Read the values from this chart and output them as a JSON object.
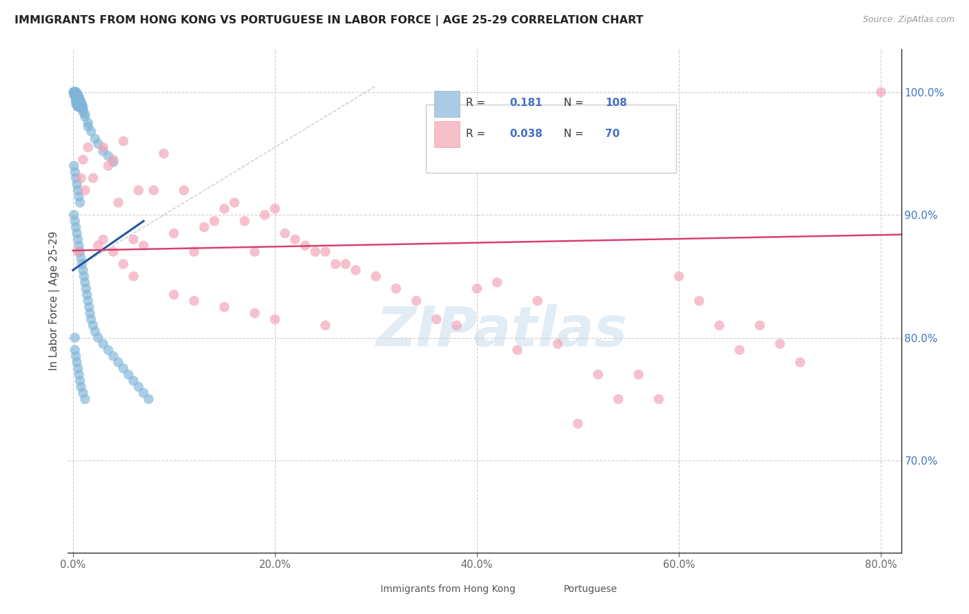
{
  "title": "IMMIGRANTS FROM HONG KONG VS PORTUGUESE IN LABOR FORCE | AGE 25-29 CORRELATION CHART",
  "source": "Source: ZipAtlas.com",
  "ylabel": "In Labor Force | Age 25-29",
  "x_tick_labels": [
    "0.0%",
    "20.0%",
    "40.0%",
    "60.0%",
    "80.0%"
  ],
  "x_tick_vals": [
    0.0,
    0.2,
    0.4,
    0.6,
    0.8
  ],
  "y_tick_labels_right": [
    "100.0%",
    "90.0%",
    "80.0%",
    "70.0%"
  ],
  "y_tick_vals": [
    1.0,
    0.9,
    0.8,
    0.7
  ],
  "xlim": [
    -0.005,
    0.82
  ],
  "ylim": [
    0.625,
    1.035
  ],
  "hk_R": 0.181,
  "hk_N": 108,
  "pt_R": 0.038,
  "pt_N": 70,
  "hk_color": "#7FB5D8",
  "pt_color": "#F2A0B4",
  "hk_line_color": "#2255A0",
  "pt_line_color": "#D84070",
  "legend_box_color_hk": "#A8CCE8",
  "legend_box_color_pt": "#F7BFCA",
  "hk_scatter_x": [
    0.001,
    0.001,
    0.001,
    0.001,
    0.001,
    0.002,
    0.002,
    0.002,
    0.002,
    0.002,
    0.002,
    0.002,
    0.003,
    0.003,
    0.003,
    0.003,
    0.003,
    0.003,
    0.003,
    0.003,
    0.004,
    0.004,
    0.004,
    0.004,
    0.004,
    0.004,
    0.005,
    0.005,
    0.005,
    0.005,
    0.005,
    0.005,
    0.006,
    0.006,
    0.006,
    0.006,
    0.006,
    0.007,
    0.007,
    0.007,
    0.007,
    0.008,
    0.008,
    0.008,
    0.009,
    0.009,
    0.01,
    0.01,
    0.01,
    0.012,
    0.012,
    0.015,
    0.015,
    0.018,
    0.022,
    0.025,
    0.03,
    0.035,
    0.04,
    0.001,
    0.002,
    0.003,
    0.004,
    0.005,
    0.006,
    0.007,
    0.001,
    0.002,
    0.003,
    0.004,
    0.005,
    0.006,
    0.007,
    0.008,
    0.009,
    0.01,
    0.011,
    0.012,
    0.013,
    0.014,
    0.015,
    0.016,
    0.017,
    0.018,
    0.02,
    0.022,
    0.025,
    0.03,
    0.035,
    0.04,
    0.045,
    0.05,
    0.055,
    0.06,
    0.065,
    0.07,
    0.075,
    0.002,
    0.002,
    0.003,
    0.004,
    0.005,
    0.006,
    0.007,
    0.008,
    0.01,
    0.012
  ],
  "hk_scatter_y": [
    1.0,
    1.0,
    1.0,
    1.0,
    0.998,
    1.0,
    1.0,
    1.0,
    1.0,
    0.999,
    0.998,
    0.997,
    1.0,
    1.0,
    0.999,
    0.998,
    0.996,
    0.995,
    0.993,
    0.991,
    0.999,
    0.997,
    0.995,
    0.993,
    0.991,
    0.989,
    0.998,
    0.996,
    0.994,
    0.992,
    0.99,
    0.988,
    0.996,
    0.994,
    0.992,
    0.99,
    0.988,
    0.994,
    0.992,
    0.99,
    0.988,
    0.992,
    0.99,
    0.988,
    0.99,
    0.988,
    0.988,
    0.986,
    0.984,
    0.982,
    0.98,
    0.975,
    0.972,
    0.968,
    0.962,
    0.958,
    0.952,
    0.948,
    0.943,
    0.94,
    0.935,
    0.93,
    0.925,
    0.92,
    0.915,
    0.91,
    0.9,
    0.895,
    0.89,
    0.885,
    0.88,
    0.875,
    0.87,
    0.865,
    0.86,
    0.855,
    0.85,
    0.845,
    0.84,
    0.835,
    0.83,
    0.825,
    0.82,
    0.815,
    0.81,
    0.805,
    0.8,
    0.795,
    0.79,
    0.785,
    0.78,
    0.775,
    0.77,
    0.765,
    0.76,
    0.755,
    0.75,
    0.8,
    0.79,
    0.785,
    0.78,
    0.775,
    0.77,
    0.765,
    0.76,
    0.755,
    0.75
  ],
  "pt_scatter_x": [
    0.005,
    0.008,
    0.01,
    0.012,
    0.015,
    0.02,
    0.025,
    0.03,
    0.035,
    0.04,
    0.045,
    0.05,
    0.06,
    0.065,
    0.07,
    0.08,
    0.09,
    0.1,
    0.11,
    0.12,
    0.13,
    0.14,
    0.15,
    0.16,
    0.17,
    0.18,
    0.19,
    0.2,
    0.21,
    0.22,
    0.23,
    0.24,
    0.25,
    0.26,
    0.27,
    0.28,
    0.3,
    0.32,
    0.34,
    0.36,
    0.38,
    0.4,
    0.42,
    0.44,
    0.46,
    0.48,
    0.5,
    0.52,
    0.54,
    0.56,
    0.58,
    0.6,
    0.62,
    0.64,
    0.66,
    0.68,
    0.7,
    0.72,
    0.03,
    0.04,
    0.05,
    0.06,
    0.1,
    0.12,
    0.15,
    0.18,
    0.2,
    0.25,
    0.8
  ],
  "pt_scatter_y": [
    0.87,
    0.93,
    0.945,
    0.92,
    0.955,
    0.93,
    0.875,
    0.955,
    0.94,
    0.945,
    0.91,
    0.96,
    0.88,
    0.92,
    0.875,
    0.92,
    0.95,
    0.885,
    0.92,
    0.87,
    0.89,
    0.895,
    0.905,
    0.91,
    0.895,
    0.87,
    0.9,
    0.905,
    0.885,
    0.88,
    0.875,
    0.87,
    0.87,
    0.86,
    0.86,
    0.855,
    0.85,
    0.84,
    0.83,
    0.815,
    0.81,
    0.84,
    0.845,
    0.79,
    0.83,
    0.795,
    0.73,
    0.77,
    0.75,
    0.77,
    0.75,
    0.85,
    0.83,
    0.81,
    0.79,
    0.81,
    0.795,
    0.78,
    0.88,
    0.87,
    0.86,
    0.85,
    0.835,
    0.83,
    0.825,
    0.82,
    0.815,
    0.81,
    1.0
  ],
  "watermark_text": "ZIPatlas"
}
